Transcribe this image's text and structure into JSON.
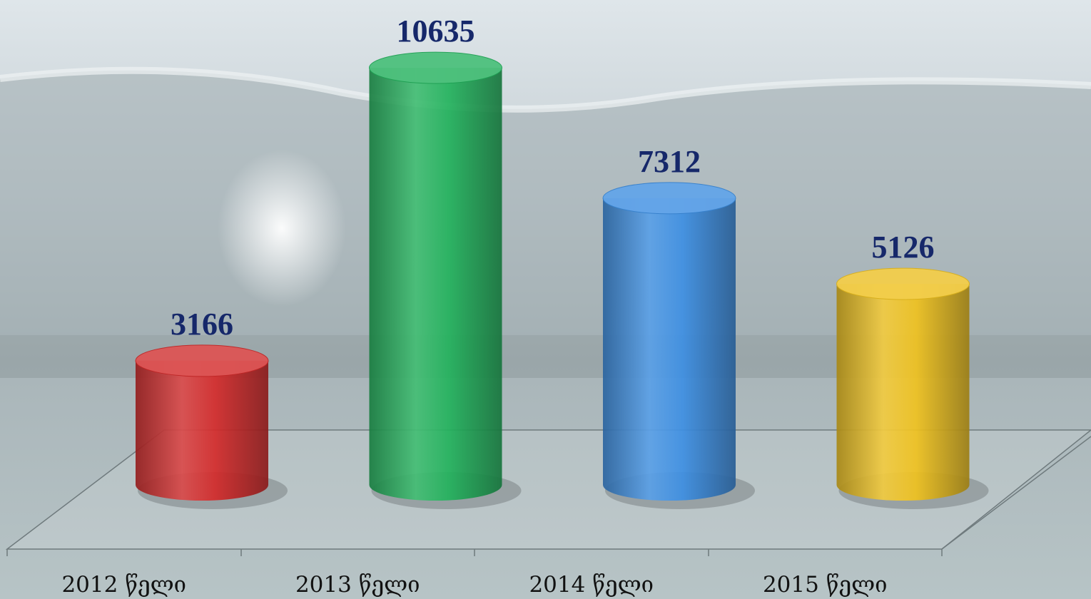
{
  "chart_data": {
    "type": "bar",
    "categories": [
      "2012 წელი",
      "2013 წელი",
      "2014 წელი",
      "2015 წელი"
    ],
    "values": [
      3166,
      10635,
      7312,
      5126
    ],
    "colors": [
      "#d42a2a",
      "#22b25c",
      "#3d8fe3",
      "#f0c21e"
    ]
  }
}
